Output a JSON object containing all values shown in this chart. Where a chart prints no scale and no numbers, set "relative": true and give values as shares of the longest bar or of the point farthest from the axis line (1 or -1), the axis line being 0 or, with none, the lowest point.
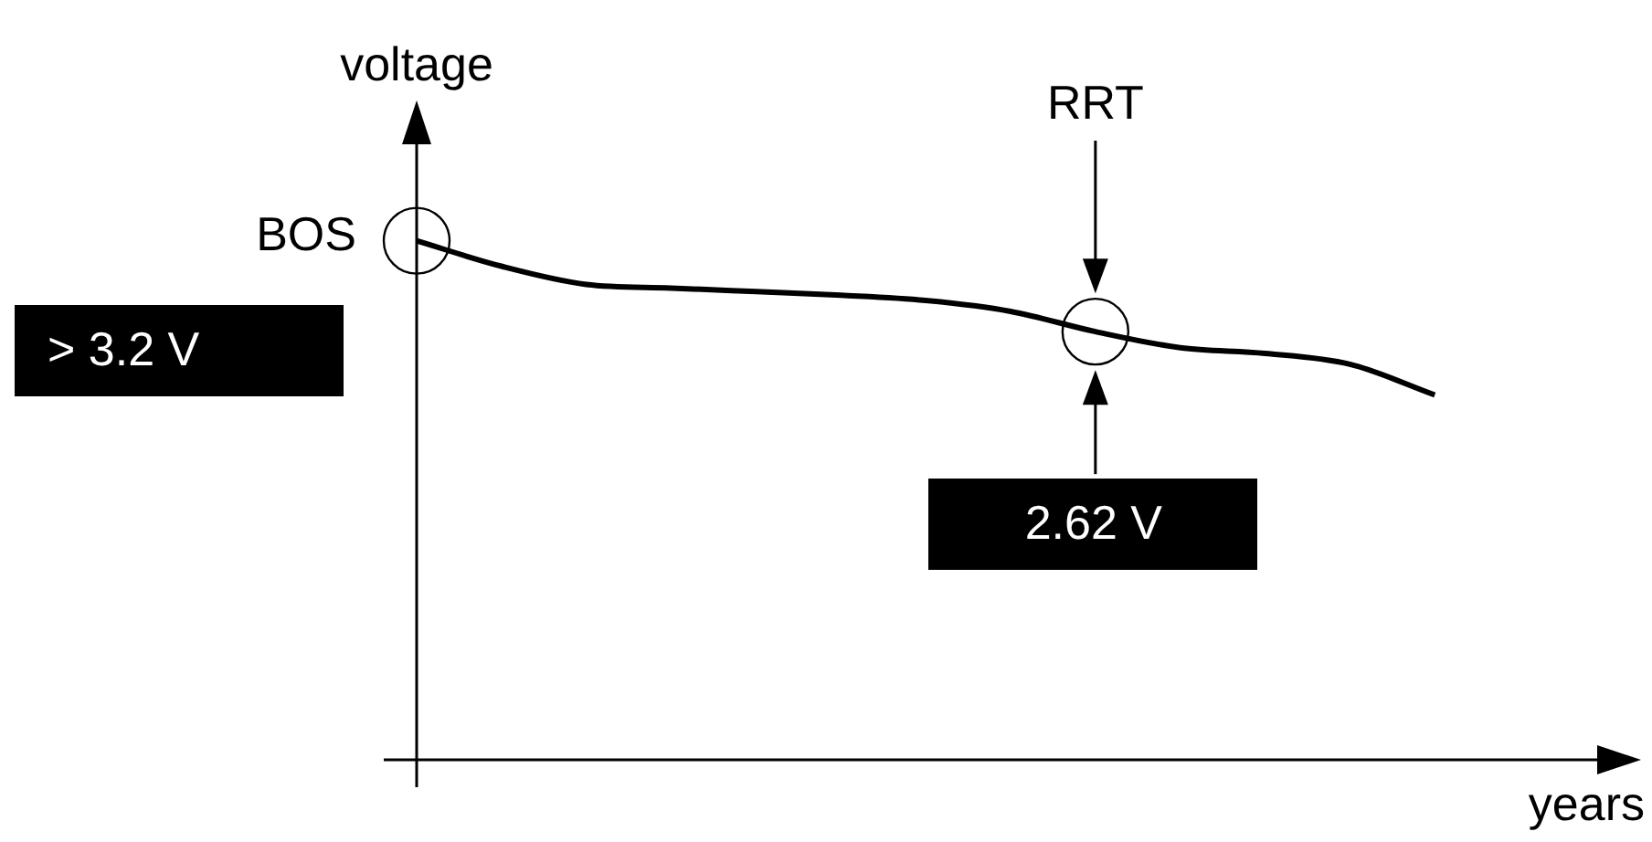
{
  "chart_data": {
    "type": "line",
    "relative": true,
    "xlabel": "years",
    "ylabel": "voltage",
    "categories": [
      null,
      null,
      null,
      null,
      null,
      null,
      null,
      null,
      null,
      null,
      null,
      null,
      null,
      null,
      null
    ],
    "series": [
      {
        "color": "#000000",
        "values": [
          1,
          0.951,
          0.916,
          0.909,
          0.902,
          0.895,
          0.885,
          0.864,
          0.825,
          0.794,
          0.783,
          0.762,
          0.703,
          null,
          null
        ]
      }
    ],
    "annotations": [
      "BOS",
      "> 3.2 V",
      "RRT",
      "2.62 V"
    ],
    "legend": false,
    "marker": "none",
    "line_style": "solid"
  }
}
